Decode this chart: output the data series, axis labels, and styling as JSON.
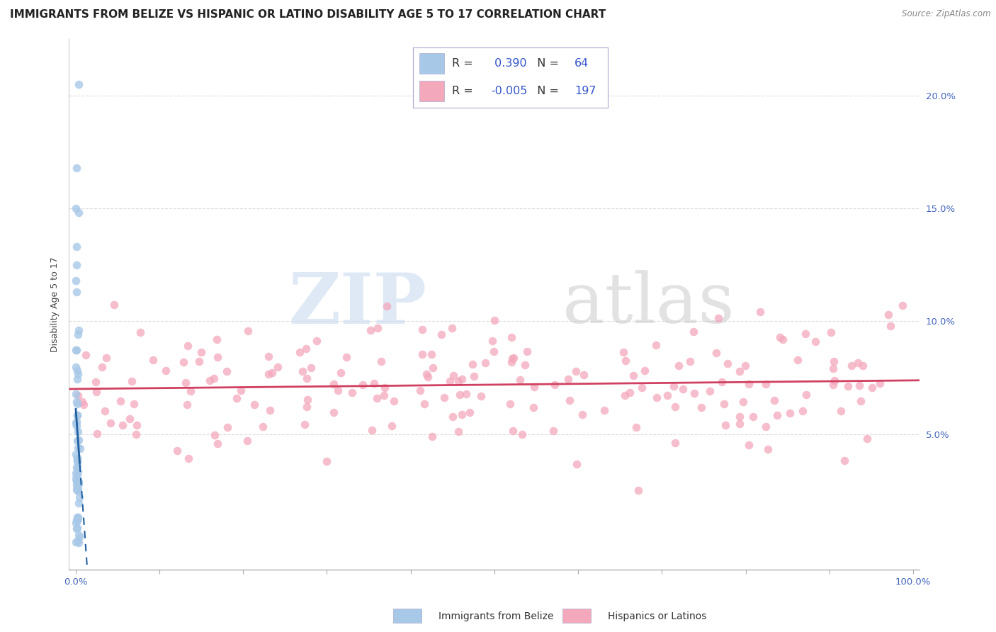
{
  "title": "IMMIGRANTS FROM BELIZE VS HISPANIC OR LATINO DISABILITY AGE 5 TO 17 CORRELATION CHART",
  "source": "Source: ZipAtlas.com",
  "ylabel": "Disability Age 5 to 17",
  "blue_R": 0.39,
  "blue_N": 64,
  "pink_R": -0.005,
  "pink_N": 197,
  "blue_color": "#a8c8e8",
  "pink_color": "#f4a8bc",
  "blue_line_color": "#2060a0",
  "pink_line_color": "#d04060",
  "background_color": "#ffffff",
  "legend_label_blue": "Immigrants from Belize",
  "legend_label_pink": "Hispanics or Latinos",
  "xlim": [
    -0.008,
    1.008
  ],
  "ylim": [
    -0.01,
    0.225
  ],
  "yticks": [
    0.05,
    0.1,
    0.15,
    0.2
  ],
  "ytick_labels": [
    "5.0%",
    "10.0%",
    "15.0%",
    "20.0%"
  ],
  "xtick_positions": [
    0.0,
    0.1,
    0.2,
    0.3,
    0.4,
    0.5,
    0.6,
    0.7,
    0.8,
    0.9,
    1.0
  ],
  "xtick_labeled": [
    0.0,
    1.0
  ],
  "xtick_label_values": [
    "0.0%",
    "100.0%"
  ],
  "watermark_zip": "ZIP",
  "watermark_atlas": "atlas",
  "title_fontsize": 11,
  "label_fontsize": 9,
  "tick_fontsize": 9.5,
  "tick_color": "#4466bb",
  "grid_color": "#dddddd"
}
